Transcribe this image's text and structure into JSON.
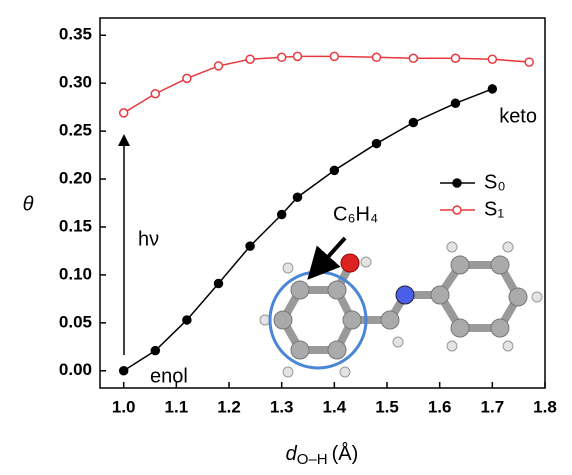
{
  "chart_data": {
    "type": "line",
    "x_label": {
      "symbol": "d",
      "subscript": "O–H",
      "unit": "(Å)"
    },
    "y_label": "θ",
    "xlim": [
      0.955,
      1.8
    ],
    "ylim": [
      -0.018,
      0.368
    ],
    "xticks": [
      {
        "value": 1.0,
        "label": "1.0"
      },
      1.1,
      1.2,
      1.3,
      1.4,
      1.5,
      1.6,
      1.7,
      1.8
    ],
    "yticks": [
      {
        "value": 0,
        "label": "0.00"
      },
      0.05,
      {
        "value": 0.1,
        "label": "0.10"
      },
      0.15,
      {
        "value": 0.2,
        "label": "0.20"
      },
      0.25,
      {
        "value": 0.3,
        "label": "0.30"
      },
      0.35
    ],
    "series": [
      {
        "name": "S₀",
        "color": "#000000",
        "marker": "filled",
        "x": [
          1.0,
          1.06,
          1.12,
          1.18,
          1.24,
          1.3,
          1.33,
          1.4,
          1.48,
          1.55,
          1.63,
          1.7
        ],
        "values": [
          0.0,
          0.021,
          0.053,
          0.091,
          0.13,
          0.163,
          0.181,
          0.209,
          0.237,
          0.259,
          0.279,
          0.294
        ]
      },
      {
        "name": "S₁",
        "color": "#e8383d",
        "marker": "open",
        "x": [
          1.0,
          1.06,
          1.12,
          1.18,
          1.24,
          1.3,
          1.33,
          1.4,
          1.48,
          1.55,
          1.63,
          1.7,
          1.77
        ],
        "values": [
          0.269,
          0.289,
          0.305,
          0.318,
          0.325,
          0.327,
          0.328,
          0.328,
          0.327,
          0.326,
          0.326,
          0.325,
          0.322
        ]
      }
    ],
    "annotations": {
      "keto": "keto",
      "enol": "enol",
      "excitation": "hν",
      "group": "C₆H₄"
    }
  }
}
